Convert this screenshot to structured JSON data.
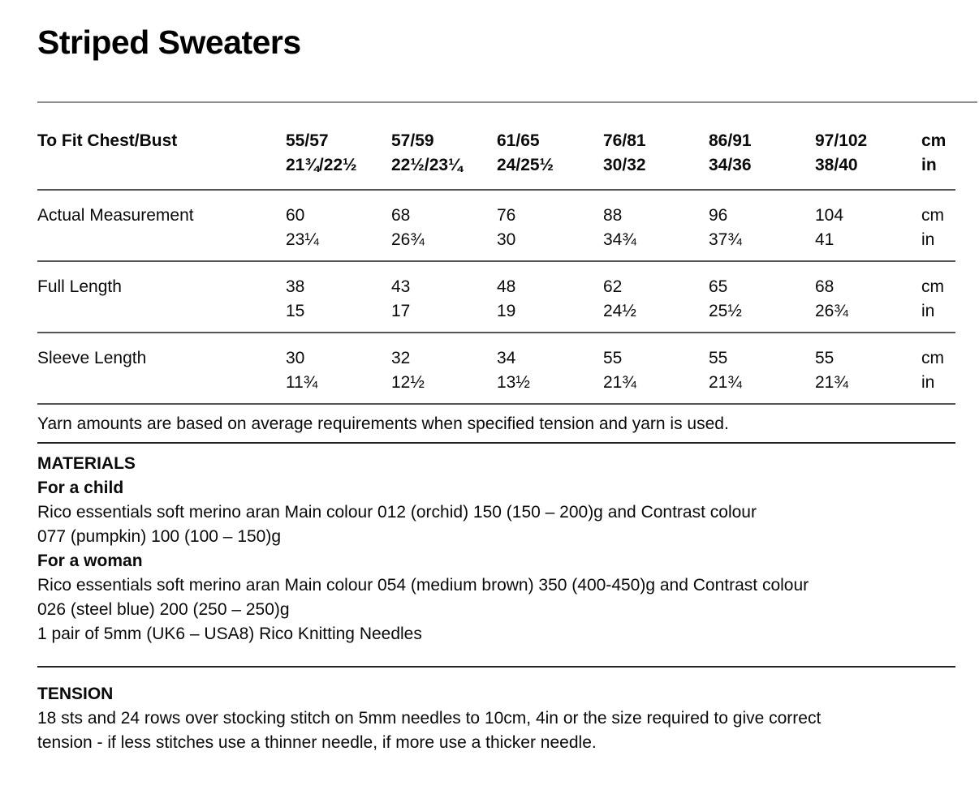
{
  "title": "Striped Sweaters",
  "size_table": {
    "header": {
      "label": "To Fit Chest/Bust",
      "columns": [
        {
          "cm": "55/57",
          "in": "21¾/22½"
        },
        {
          "cm": "57/59",
          "in": "22½/23¼"
        },
        {
          "cm": "61/65",
          "in": "24/25½"
        },
        {
          "cm": "76/81",
          "in": "30/32"
        },
        {
          "cm": "86/91",
          "in": "34/36"
        },
        {
          "cm": "97/102",
          "in": "38/40"
        }
      ],
      "units": {
        "cm": "cm",
        "in": "in"
      }
    },
    "rows": [
      {
        "label": "Actual Measurement",
        "values": [
          {
            "cm": "60",
            "in": "23¼"
          },
          {
            "cm": "68",
            "in": "26¾"
          },
          {
            "cm": "76",
            "in": "30"
          },
          {
            "cm": "88",
            "in": "34¾"
          },
          {
            "cm": "96",
            "in": "37¾"
          },
          {
            "cm": "104",
            "in": "41"
          }
        ],
        "units": {
          "cm": "cm",
          "in": "in"
        }
      },
      {
        "label": "Full Length",
        "values": [
          {
            "cm": "38",
            "in": "15"
          },
          {
            "cm": "43",
            "in": "17"
          },
          {
            "cm": "48",
            "in": "19"
          },
          {
            "cm": "62",
            "in": "24½"
          },
          {
            "cm": "65",
            "in": "25½"
          },
          {
            "cm": "68",
            "in": "26¾"
          }
        ],
        "units": {
          "cm": "cm",
          "in": "in"
        }
      },
      {
        "label": "Sleeve Length",
        "values": [
          {
            "cm": "30",
            "in": "11¾"
          },
          {
            "cm": "32",
            "in": "12½"
          },
          {
            "cm": "34",
            "in": "13½"
          },
          {
            "cm": "55",
            "in": "21¾"
          },
          {
            "cm": "55",
            "in": "21¾"
          },
          {
            "cm": "55",
            "in": "21¾"
          }
        ],
        "units": {
          "cm": "cm",
          "in": "in"
        }
      }
    ]
  },
  "yarn_note": "Yarn amounts are based on average requirements when specified tension and yarn is used.",
  "materials": {
    "heading": "MATERIALS",
    "sections": [
      {
        "subheading": "For a child",
        "lines": [
          "Rico essentials soft merino aran Main colour 012 (orchid) 150 (150 – 200)g and Contrast colour",
          "077 (pumpkin) 100 (100 – 150)g"
        ]
      },
      {
        "subheading": "For a woman",
        "lines": [
          "Rico essentials soft merino aran Main colour 054 (medium brown) 350 (400-450)g and Contrast colour",
          "026 (steel blue) 200 (250 – 250)g",
          "1 pair of 5mm (UK6 – USA8) Rico Knitting Needles"
        ]
      }
    ]
  },
  "tension": {
    "heading": "TENSION",
    "lines": [
      "18 sts and 24 rows over stocking stitch on 5mm needles to 10cm, 4in or the size required to give correct",
      "tension - if less stitches use a thinner needle, if more use a thicker needle."
    ]
  }
}
